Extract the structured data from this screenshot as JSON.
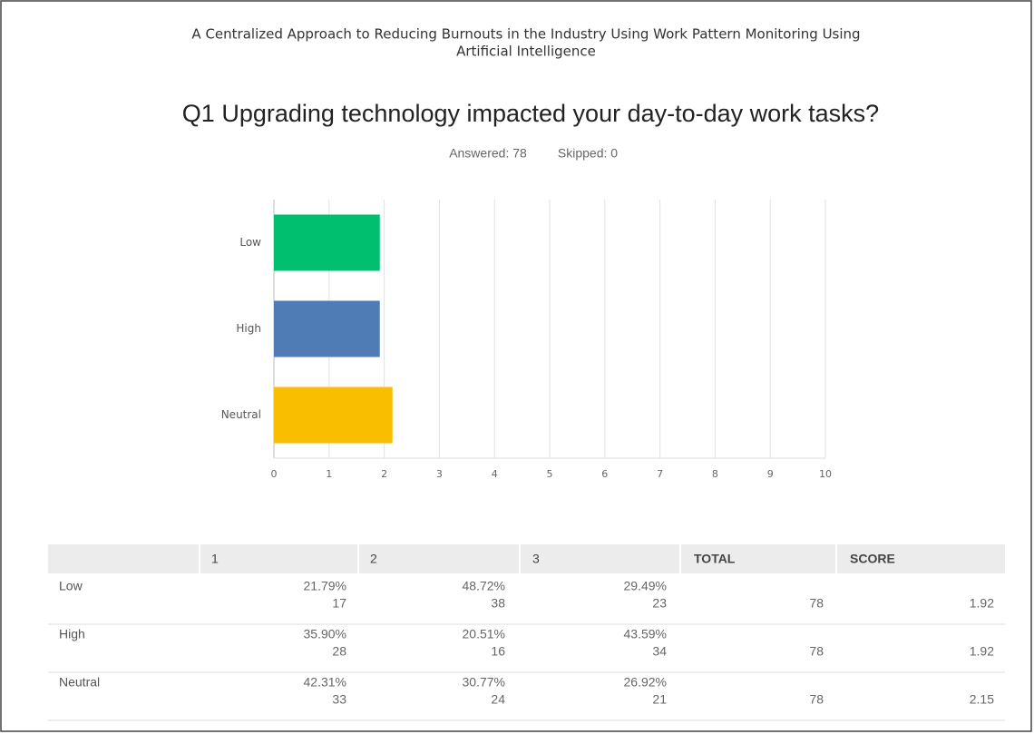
{
  "header": {
    "title": "A Centralized Approach to Reducing Burnouts in the Industry Using Work Pattern Monitoring Using",
    "title_line2": "Artificial Intelligence"
  },
  "chart_data": {
    "type": "bar",
    "orientation": "horizontal",
    "title": "Q1 Upgrading technology impacted your day-to-day work tasks?",
    "answered": "Answered: 78",
    "skipped": "Skipped: 0",
    "categories": [
      "Low",
      "High",
      "Neutral"
    ],
    "values": [
      1.92,
      1.92,
      2.15
    ],
    "colors": [
      "#00bf6f",
      "#507cb6",
      "#f9be00"
    ],
    "xlim": [
      0,
      10
    ],
    "xticks": [
      0,
      1,
      2,
      3,
      4,
      5,
      6,
      7,
      8,
      9,
      10
    ],
    "grid": true
  },
  "table": {
    "columns": [
      "1",
      "2",
      "3",
      "TOTAL",
      "SCORE"
    ],
    "rows": [
      {
        "label": "Low",
        "cells": [
          {
            "percent": "21.79%",
            "count": 17
          },
          {
            "percent": "48.72%",
            "count": 38
          },
          {
            "percent": "29.49%",
            "count": 23
          }
        ],
        "total": 78,
        "score": 1.92
      },
      {
        "label": "High",
        "cells": [
          {
            "percent": "35.90%",
            "count": 28
          },
          {
            "percent": "20.51%",
            "count": 16
          },
          {
            "percent": "43.59%",
            "count": 34
          }
        ],
        "total": 78,
        "score": 1.92
      },
      {
        "label": "Neutral",
        "cells": [
          {
            "percent": "42.31%",
            "count": 33
          },
          {
            "percent": "30.77%",
            "count": 24
          },
          {
            "percent": "26.92%",
            "count": 21
          }
        ],
        "total": 78,
        "score": 2.15
      }
    ]
  }
}
